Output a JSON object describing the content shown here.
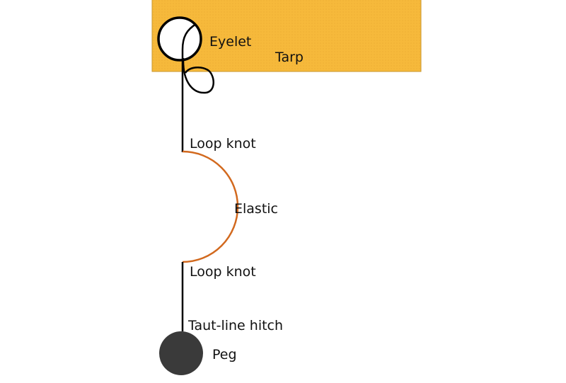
{
  "labels": {
    "eyelet": "Eyelet",
    "tarp": "Tarp",
    "loop_knot_top": "Loop knot",
    "elastic": "Elastic",
    "loop_knot_bottom": "Loop knot",
    "taut_line_hitch": "Taut-line hitch",
    "peg": "Peg"
  },
  "colors": {
    "tarp_fill": "#f6b93b",
    "tarp_border": "#c8962e",
    "cord": "#000000",
    "elastic": "#d2691e",
    "peg": "#3a3a3a"
  }
}
